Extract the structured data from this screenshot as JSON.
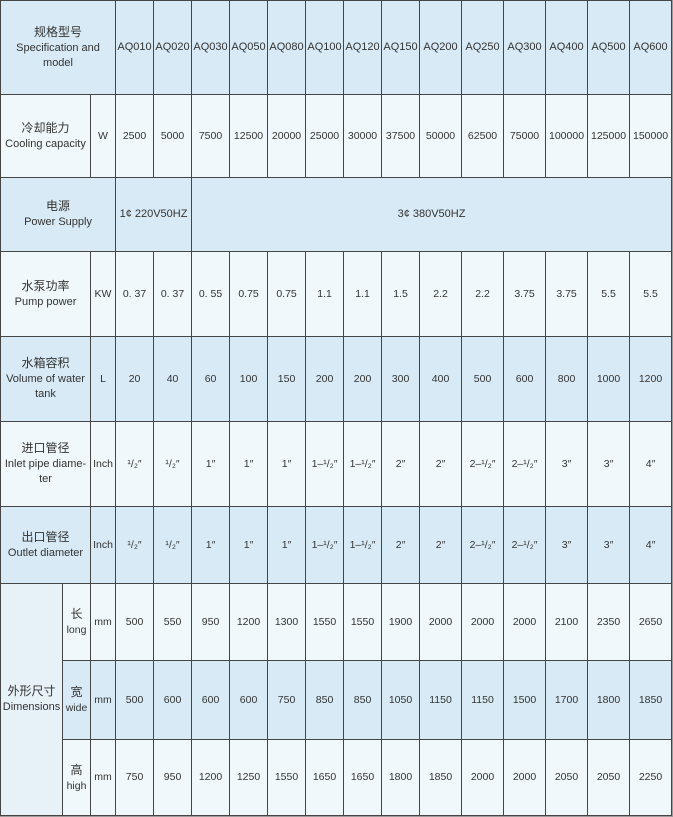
{
  "header": {
    "zh": "规格型号",
    "en": "Specification and model",
    "models": [
      "AQ010",
      "AQ020",
      "AQ030",
      "AQ050",
      "AQ080",
      "AQ100",
      "AQ120",
      "AQ150",
      "AQ200",
      "AQ250",
      "AQ300",
      "AQ400",
      "AQ500",
      "AQ600"
    ]
  },
  "rows": {
    "cooling": {
      "zh": "冷却能力",
      "en": "Cooling capacity",
      "unit": "W",
      "values": [
        "2500",
        "5000",
        "7500",
        "12500",
        "20000",
        "25000",
        "30000",
        "37500",
        "50000",
        "62500",
        "75000",
        "100000",
        "125000",
        "150000"
      ]
    },
    "power": {
      "zh": "电源",
      "en": "Power Supply",
      "single_phase": "1¢ 220V50HZ",
      "three_phase": "3¢ 380V50HZ"
    },
    "pump": {
      "zh": "水泵功率",
      "en": "Pump power",
      "unit": "KW",
      "values": [
        "0. 37",
        "0. 37",
        "0. 55",
        "0.75",
        "0.75",
        "1.1",
        "1.1",
        "1.5",
        "2.2",
        "2.2",
        "3.75",
        "3.75",
        "5.5",
        "5.5"
      ]
    },
    "volume": {
      "zh": "水箱容积",
      "en": "Volume of water tank",
      "unit": "L",
      "values": [
        "20",
        "40",
        "60",
        "100",
        "150",
        "200",
        "200",
        "300",
        "400",
        "500",
        "600",
        "800",
        "1000",
        "1200"
      ]
    },
    "inlet": {
      "zh": "进口管径",
      "en": "Inlet pipe diame-ter",
      "unit": "Inch",
      "values": [
        "¹/₂″",
        "¹/₂″",
        "1″",
        "1″",
        "1″",
        "1–¹/₂″",
        "1–¹/₂″",
        "2″",
        "2″",
        "2–¹/₂″",
        "2–¹/₂″",
        "3″",
        "3″",
        "4″"
      ]
    },
    "outlet": {
      "zh": "出口管径",
      "en": "Outlet diameter",
      "unit": "Inch",
      "values": [
        "¹/₂″",
        "¹/₂″",
        "1″",
        "1″",
        "1″",
        "1–¹/₂″",
        "1–¹/₂″",
        "2″",
        "2″",
        "2–¹/₂″",
        "2–¹/₂″",
        "3″",
        "3″",
        "4″"
      ]
    },
    "dimensions": {
      "zh": "外形尺寸",
      "en": "Dimensions",
      "long": {
        "zh": "长",
        "en": "long",
        "unit": "mm",
        "values": [
          "500",
          "550",
          "950",
          "1200",
          "1300",
          "1550",
          "1550",
          "1900",
          "2000",
          "2000",
          "2000",
          "2100",
          "2350",
          "2650"
        ]
      },
      "wide": {
        "zh": "宽",
        "en": "wide",
        "unit": "mm",
        "values": [
          "500",
          "600",
          "600",
          "600",
          "750",
          "850",
          "850",
          "1050",
          "1150",
          "1150",
          "1500",
          "1700",
          "1800",
          "1850"
        ]
      },
      "high": {
        "zh": "高",
        "en": "high",
        "unit": "mm",
        "values": [
          "750",
          "950",
          "1200",
          "1250",
          "1550",
          "1650",
          "1650",
          "1800",
          "1850",
          "2000",
          "2000",
          "2050",
          "2050",
          "2250"
        ]
      }
    }
  },
  "colors": {
    "row_blue": "#d8eaf5",
    "row_light": "#f1f8fb",
    "border": "#454545",
    "text": "#333333"
  }
}
